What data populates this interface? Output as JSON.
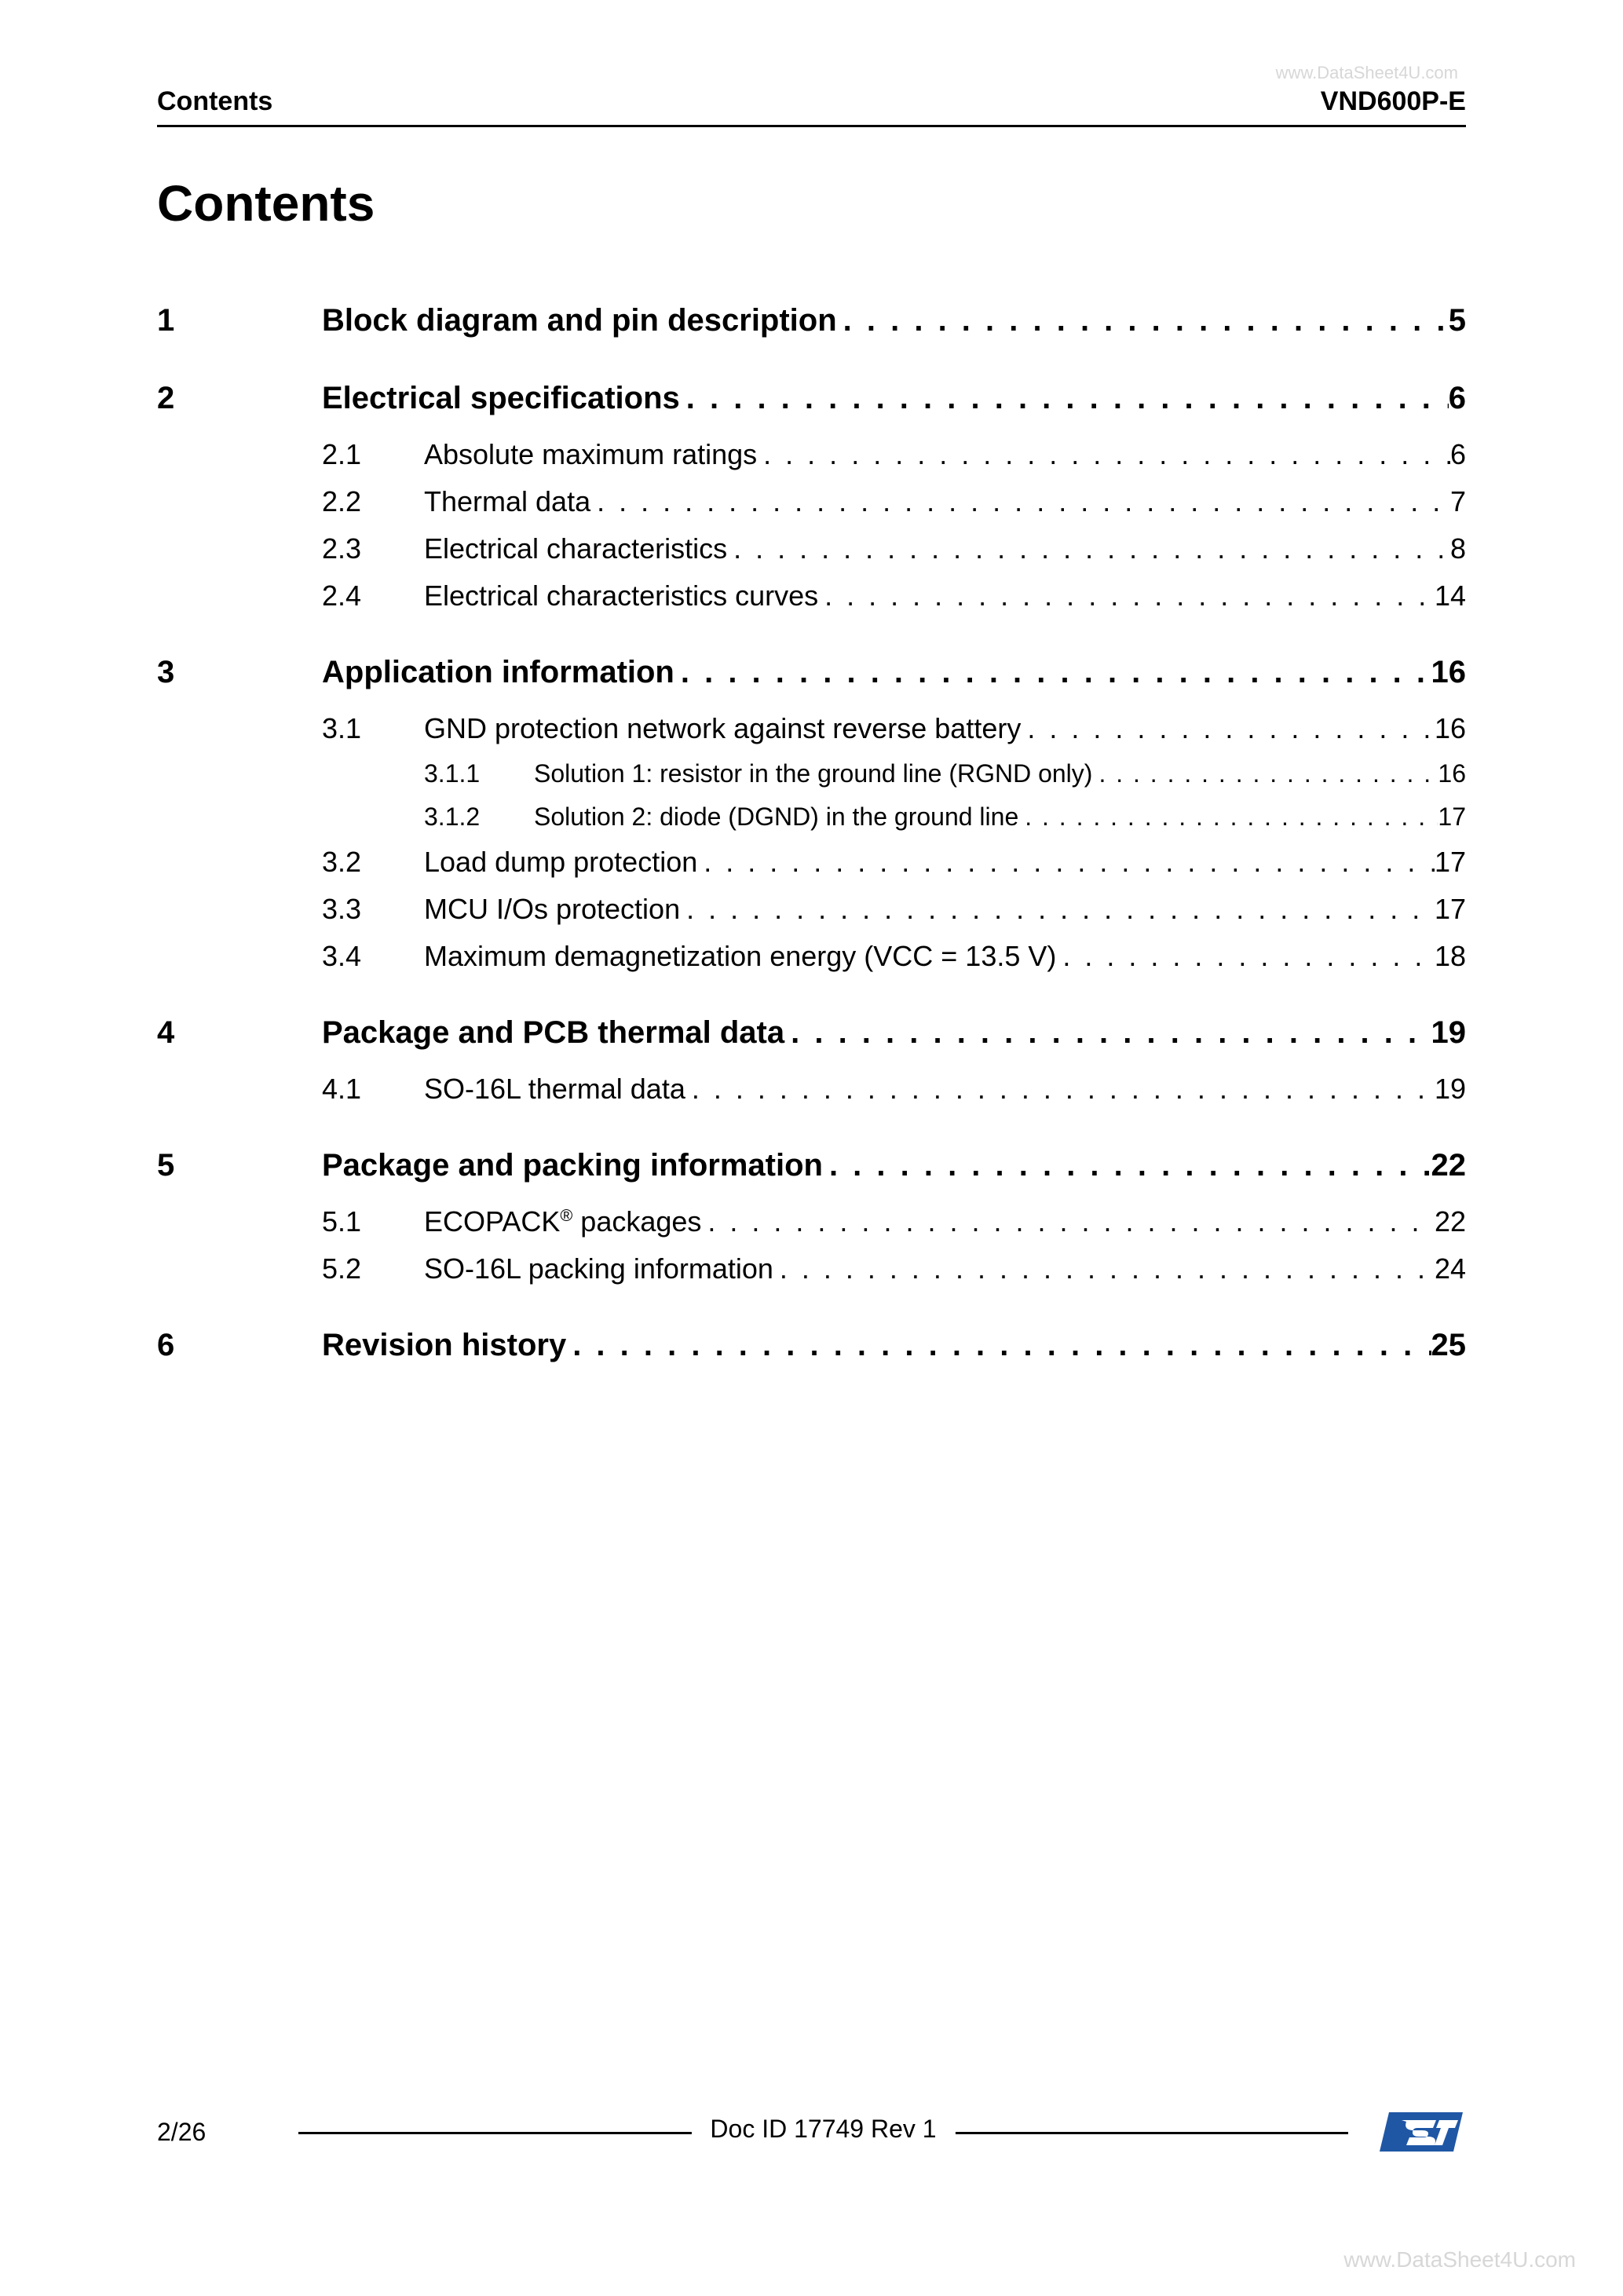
{
  "watermark": "www.DataSheet4U.com",
  "header": {
    "left": "Contents",
    "right": "VND600P-E"
  },
  "title": "Contents",
  "footer": {
    "page": "2/26",
    "doc": "Doc ID 17749 Rev 1"
  },
  "colors": {
    "text": "#000000",
    "bg": "#ffffff",
    "watermark": "#d7d7d7",
    "logo_blue": "#1f57a5",
    "logo_white": "#ffffff"
  },
  "toc": [
    {
      "level": 1,
      "num": "1",
      "text": "Block diagram and pin description",
      "page": "5"
    },
    {
      "level": 1,
      "num": "2",
      "text": "Electrical specifications",
      "page": "6"
    },
    {
      "level": 2,
      "num": "2.1",
      "text": "Absolute maximum ratings",
      "page": "6"
    },
    {
      "level": 2,
      "num": "2.2",
      "text": "Thermal data",
      "page": "7"
    },
    {
      "level": 2,
      "num": "2.3",
      "text": "Electrical characteristics",
      "page": "8"
    },
    {
      "level": 2,
      "num": "2.4",
      "text": "Electrical characteristics curves",
      "page": "14"
    },
    {
      "level": 1,
      "num": "3",
      "text": "Application information",
      "page": "16"
    },
    {
      "level": 2,
      "num": "3.1",
      "text": "GND protection network against reverse battery",
      "page": "16"
    },
    {
      "level": 3,
      "num": "3.1.1",
      "text": "Solution 1: resistor in the ground line (RGND only)",
      "page": "16"
    },
    {
      "level": 3,
      "num": "3.1.2",
      "text": "Solution 2: diode (DGND) in the ground line",
      "page": "17"
    },
    {
      "level": 2,
      "num": "3.2",
      "text": "Load dump protection",
      "page": "17"
    },
    {
      "level": 2,
      "num": "3.3",
      "text": "MCU I/Os protection",
      "page": "17"
    },
    {
      "level": 2,
      "num": "3.4",
      "text": "Maximum demagnetization energy (VCC = 13.5 V)",
      "page": "18"
    },
    {
      "level": 1,
      "num": "4",
      "text": "Package and PCB thermal data",
      "page": "19"
    },
    {
      "level": 2,
      "num": "4.1",
      "text": "SO-16L thermal data",
      "page": "19"
    },
    {
      "level": 1,
      "num": "5",
      "text": "Package and packing information",
      "page": "22"
    },
    {
      "level": 2,
      "num": "5.1",
      "text": "ECOPACK® packages",
      "page": "22",
      "html": true
    },
    {
      "level": 2,
      "num": "5.2",
      "text": "SO-16L packing information",
      "page": "24"
    },
    {
      "level": 1,
      "num": "6",
      "text": "Revision history",
      "page": "25"
    }
  ]
}
